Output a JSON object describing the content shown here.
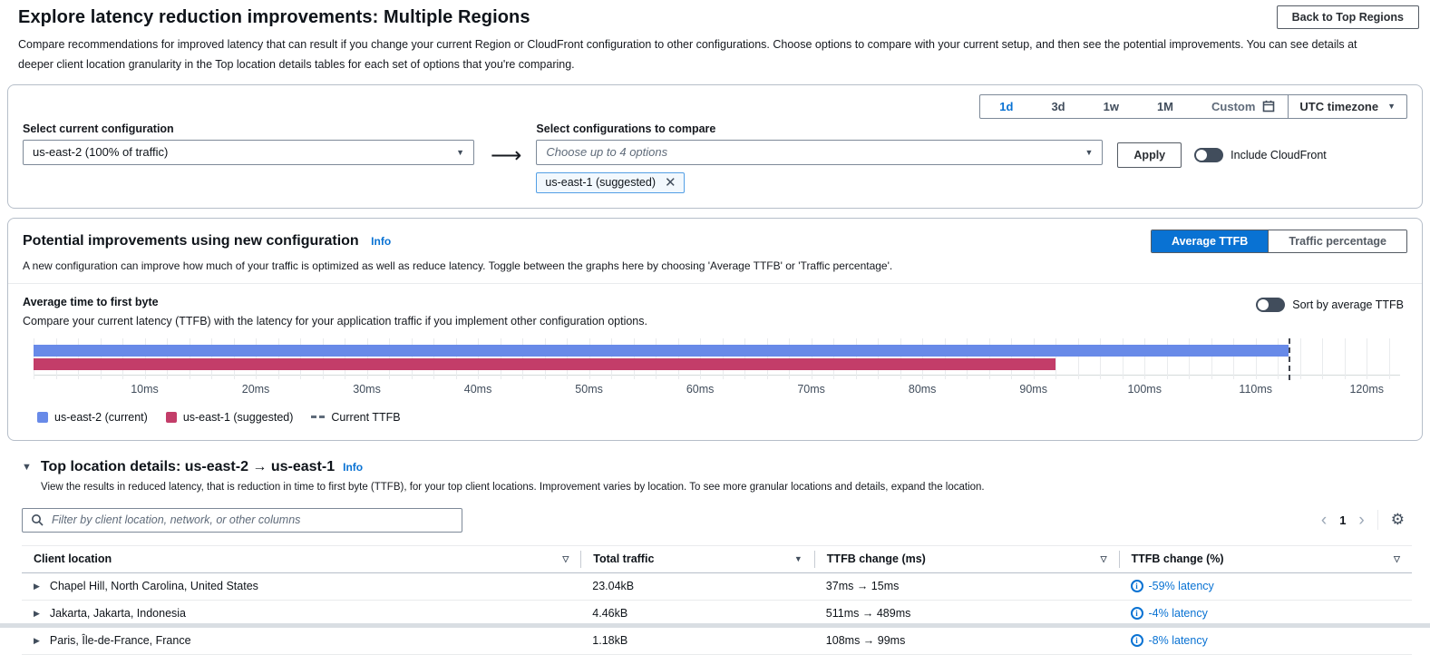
{
  "page": {
    "title": "Explore latency reduction improvements: Multiple Regions",
    "description": "Compare recommendations for improved latency that can result if you change your current Region or CloudFront configuration to other configurations. Choose options to compare with your current setup, and then see the potential improvements. You can see details at deeper client location granularity in the Top location details tables for each set of options that you're comparing.",
    "back_button": "Back to Top Regions"
  },
  "time_controls": {
    "ranges": [
      "1d",
      "3d",
      "1w",
      "1M"
    ],
    "selected_range": "1d",
    "custom_label": "Custom",
    "timezone_label": "UTC timezone"
  },
  "config_panel": {
    "current_label": "Select current configuration",
    "current_value": "us-east-2 (100% of traffic)",
    "compare_label": "Select configurations to compare",
    "compare_placeholder": "Choose up to 4 options",
    "apply_label": "Apply",
    "cloudfront_toggle_label": "Include CloudFront",
    "selected_token": "us-east-1 (suggested)"
  },
  "improvements_panel": {
    "title": "Potential improvements using new configuration",
    "info_label": "Info",
    "description": "A new configuration can improve how much of your traffic is optimized as well as reduce latency. Toggle between the graphs here by choosing 'Average TTFB' or 'Traffic percentage'.",
    "view_buttons": [
      "Average TTFB",
      "Traffic percentage"
    ],
    "selected_view": "Average TTFB",
    "chart_title": "Average time to first byte",
    "chart_description": "Compare your current latency (TTFB) with the latency for your application traffic if you implement other configuration options.",
    "sort_toggle_label": "Sort by average TTFB"
  },
  "chart_data": {
    "type": "bar",
    "orientation": "horizontal",
    "title": "Average time to first byte",
    "xlabel": "milliseconds",
    "series": [
      {
        "name": "us-east-2 (current)",
        "value_ms": 113,
        "color": "#688ae8"
      },
      {
        "name": "us-east-1 (suggested)",
        "value_ms": 92,
        "color": "#c33d69"
      }
    ],
    "current_ttfb_ms": 113,
    "x_axis": {
      "unit": "ms",
      "min": 0,
      "max": 123,
      "tick_step": 10,
      "minor_grid_step": 2,
      "tick_labels": [
        "10ms",
        "20ms",
        "30ms",
        "40ms",
        "50ms",
        "60ms",
        "70ms",
        "80ms",
        "90ms",
        "100ms",
        "110ms",
        "120ms"
      ]
    },
    "legend": [
      {
        "label": "us-east-2 (current)",
        "swatch": "#688ae8"
      },
      {
        "label": "us-east-1 (suggested)",
        "swatch": "#c33d69"
      },
      {
        "label": "Current TTFB",
        "swatch": "dashed"
      }
    ],
    "grid": true,
    "legend_position": "bottom-left"
  },
  "locations_section": {
    "title": "Top location details: us-east-2 → us-east-1",
    "info_label": "Info",
    "description": "View the results in reduced latency, that is reduction in time to first byte (TTFB), for your top client locations. Improvement varies by location. To see more granular locations and details, expand the location.",
    "filter_placeholder": "Filter by client location, network, or other columns",
    "page_number": "1",
    "table": {
      "columns": [
        "Client location",
        "Total traffic",
        "TTFB change (ms)",
        "TTFB change (%)"
      ],
      "sorted_column": "Total traffic",
      "rows": [
        {
          "location": "Chapel Hill, North Carolina, United States",
          "traffic": "23.04kB",
          "ttfb_ms": "37ms → 15ms",
          "ttfb_pct": "-59% latency"
        },
        {
          "location": "Jakarta, Jakarta, Indonesia",
          "traffic": "4.46kB",
          "ttfb_ms": "511ms → 489ms",
          "ttfb_pct": "-4% latency"
        },
        {
          "location": "Paris, Île-de-France, France",
          "traffic": "1.18kB",
          "ttfb_ms": "108ms → 99ms",
          "ttfb_pct": "-8% latency"
        }
      ]
    }
  },
  "colors": {
    "link": "#0972d3",
    "selected_blue": "#0972d3",
    "chart_blue": "#688ae8",
    "chart_red": "#c33d69"
  }
}
